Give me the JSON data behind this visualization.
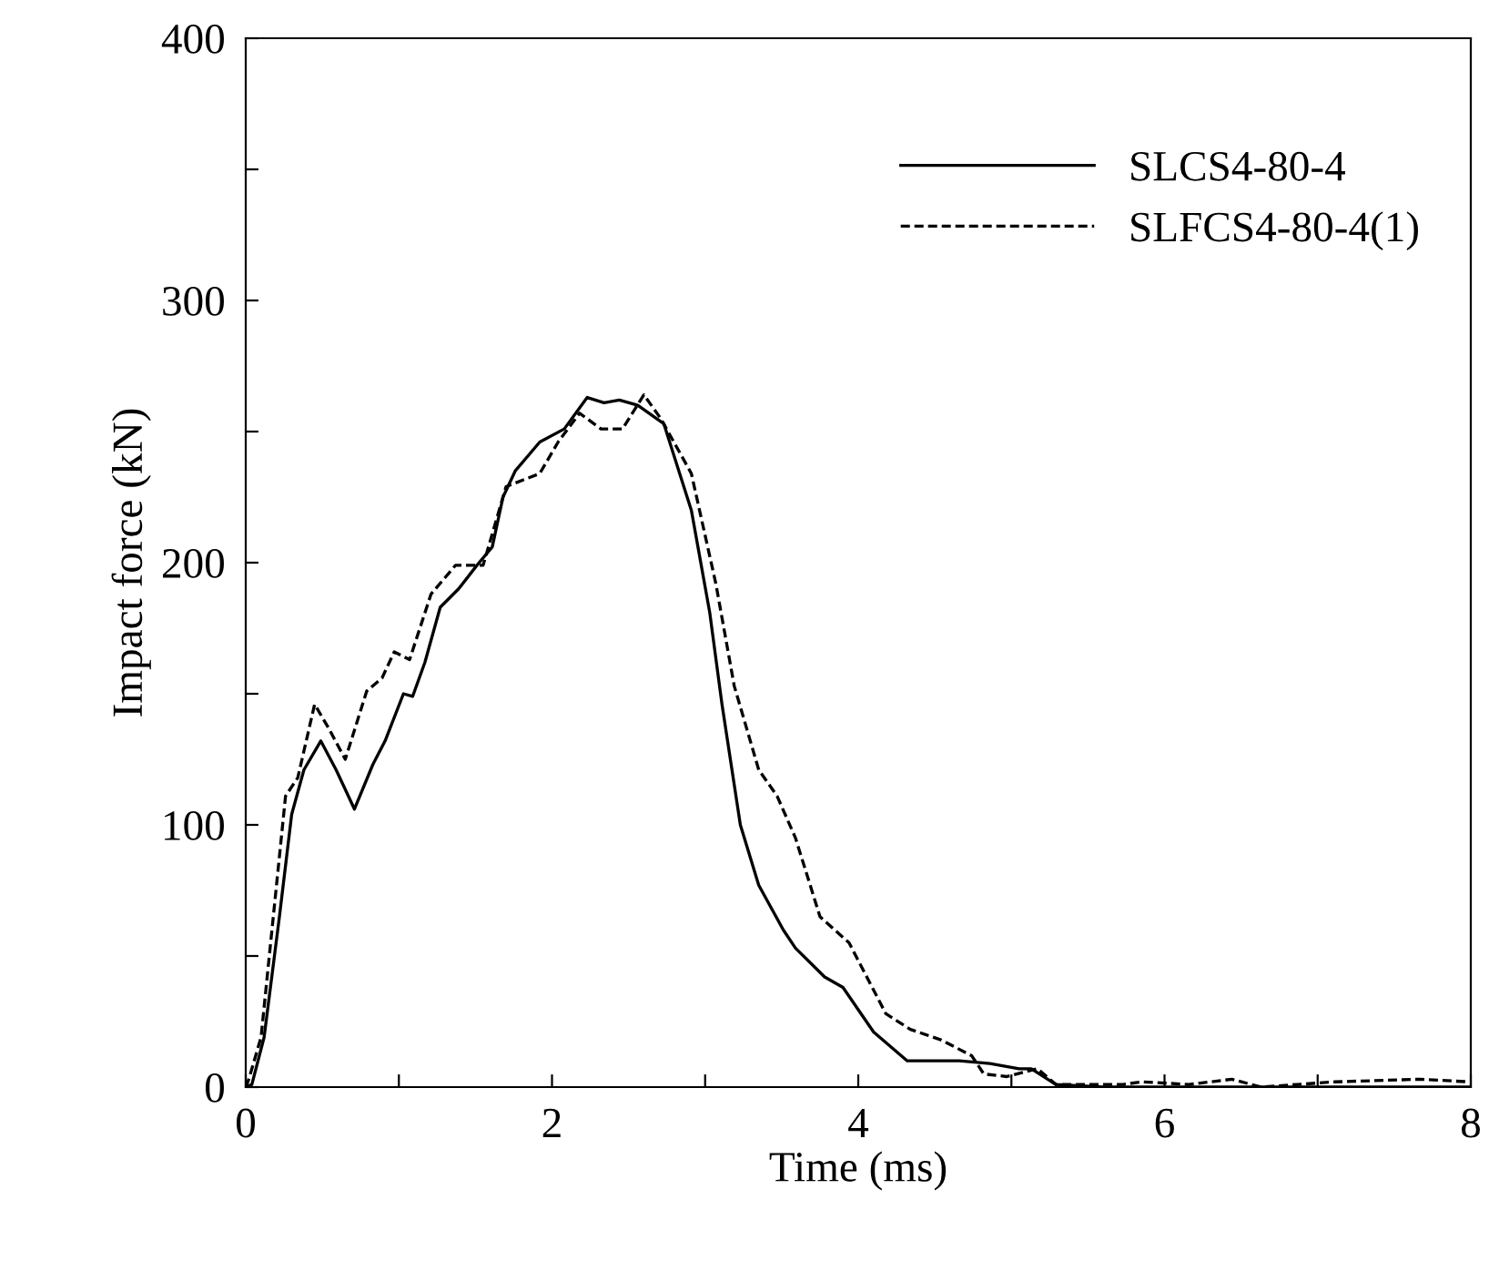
{
  "chart_data": {
    "type": "line",
    "xlabel": "Time (ms)",
    "ylabel": "Impact force (kN)",
    "xlim": [
      0,
      8
    ],
    "ylim": [
      0,
      400
    ],
    "xticks": [
      0,
      {
        "value": 1,
        "label": null
      },
      2,
      {
        "value": 3,
        "label": null
      },
      4,
      {
        "value": 5,
        "label": null
      },
      6,
      {
        "value": 7,
        "label": null
      },
      8
    ],
    "yticks": [
      0,
      {
        "value": 50,
        "label": null
      },
      100,
      {
        "value": 150,
        "label": null
      },
      200,
      {
        "value": 250,
        "label": null
      },
      300,
      {
        "value": 350,
        "label": null
      },
      400
    ],
    "grid": false,
    "legend": "top right",
    "marker": "none",
    "series": [
      {
        "name": "SLCS4-80-4",
        "color": "#000000",
        "line_style": "solid",
        "x": [
          0,
          0.04,
          0.12,
          0.22,
          0.3,
          0.38,
          0.49,
          0.59,
          0.71,
          0.83,
          0.91,
          1.03,
          1.09,
          1.17,
          1.27,
          1.39,
          1.51,
          1.61,
          1.68,
          1.76,
          1.92,
          2.08,
          2.23,
          2.34,
          2.44,
          2.56,
          2.73,
          2.91,
          3.03,
          3.11,
          3.23,
          3.35,
          3.51,
          3.59,
          3.78,
          3.9,
          4.1,
          4.32,
          4.66,
          4.86,
          5.05,
          5.13,
          5.29,
          5.6,
          6.0,
          7.0,
          8.0
        ],
        "values": [
          0,
          1,
          19,
          65,
          104,
          121,
          132,
          121,
          106,
          123,
          132,
          150,
          149,
          162,
          183,
          190,
          199,
          206,
          225,
          235,
          246,
          251,
          263,
          261,
          262,
          260,
          253,
          220,
          181,
          146,
          100,
          77,
          60,
          53,
          42,
          38,
          21,
          10,
          10,
          9,
          7,
          7,
          1,
          0,
          0,
          0,
          0
        ]
      },
      {
        "name": "SLFCS4-80-4(1)",
        "color": "#000000",
        "line_style": "dashed",
        "x": [
          0,
          0.02,
          0.1,
          0.18,
          0.26,
          0.34,
          0.45,
          0.54,
          0.65,
          0.79,
          0.89,
          0.97,
          1.07,
          1.21,
          1.37,
          1.55,
          1.7,
          1.92,
          2.04,
          2.18,
          2.32,
          2.46,
          2.6,
          2.71,
          2.91,
          3.07,
          3.19,
          3.35,
          3.47,
          3.59,
          3.75,
          3.94,
          4.18,
          4.34,
          4.54,
          4.74,
          4.82,
          4.97,
          5.17,
          5.29,
          5.73,
          5.85,
          6.16,
          6.44,
          6.63,
          7.11,
          7.67,
          7.99
        ],
        "values": [
          0,
          3,
          19,
          65,
          111,
          118,
          146,
          137,
          125,
          151,
          156,
          166,
          163,
          188,
          199,
          199,
          229,
          234,
          246,
          257,
          251,
          251,
          264,
          255,
          234,
          192,
          153,
          121,
          111,
          95,
          65,
          55,
          28,
          22,
          18,
          12,
          5,
          4,
          7,
          1,
          1,
          2,
          1,
          3,
          0,
          2,
          3,
          2
        ]
      }
    ]
  }
}
